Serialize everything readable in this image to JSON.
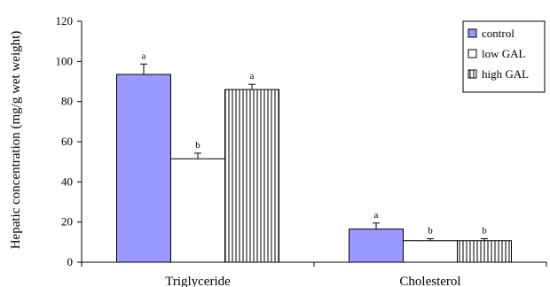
{
  "chart_data": {
    "type": "bar",
    "categories": [
      "Triglyceride",
      "Cholesterol"
    ],
    "series": [
      {
        "name": "control",
        "values": [
          93.5,
          16.5
        ],
        "errors": [
          5.2,
          3.0
        ],
        "significance": [
          "a",
          "a"
        ],
        "color": "#9999ff",
        "pattern": "solid"
      },
      {
        "name": "low GAL",
        "values": [
          51.5,
          10.7
        ],
        "errors": [
          2.8,
          1.0
        ],
        "significance": [
          "b",
          "b"
        ],
        "color": "#ffffff",
        "pattern": "none"
      },
      {
        "name": "high GAL",
        "values": [
          86.0,
          10.7
        ],
        "errors": [
          2.6,
          1.0
        ],
        "significance": [
          "a",
          "b"
        ],
        "color": "#ffffff",
        "pattern": "vertical-lines"
      }
    ],
    "xlabel": "",
    "ylabel": "Hepatic concentration (mg/g wet weight)",
    "ylim": [
      0,
      120
    ],
    "yticks": [
      0,
      20,
      40,
      60,
      80,
      100,
      120
    ],
    "grid": false,
    "legend_position": "top-right"
  }
}
